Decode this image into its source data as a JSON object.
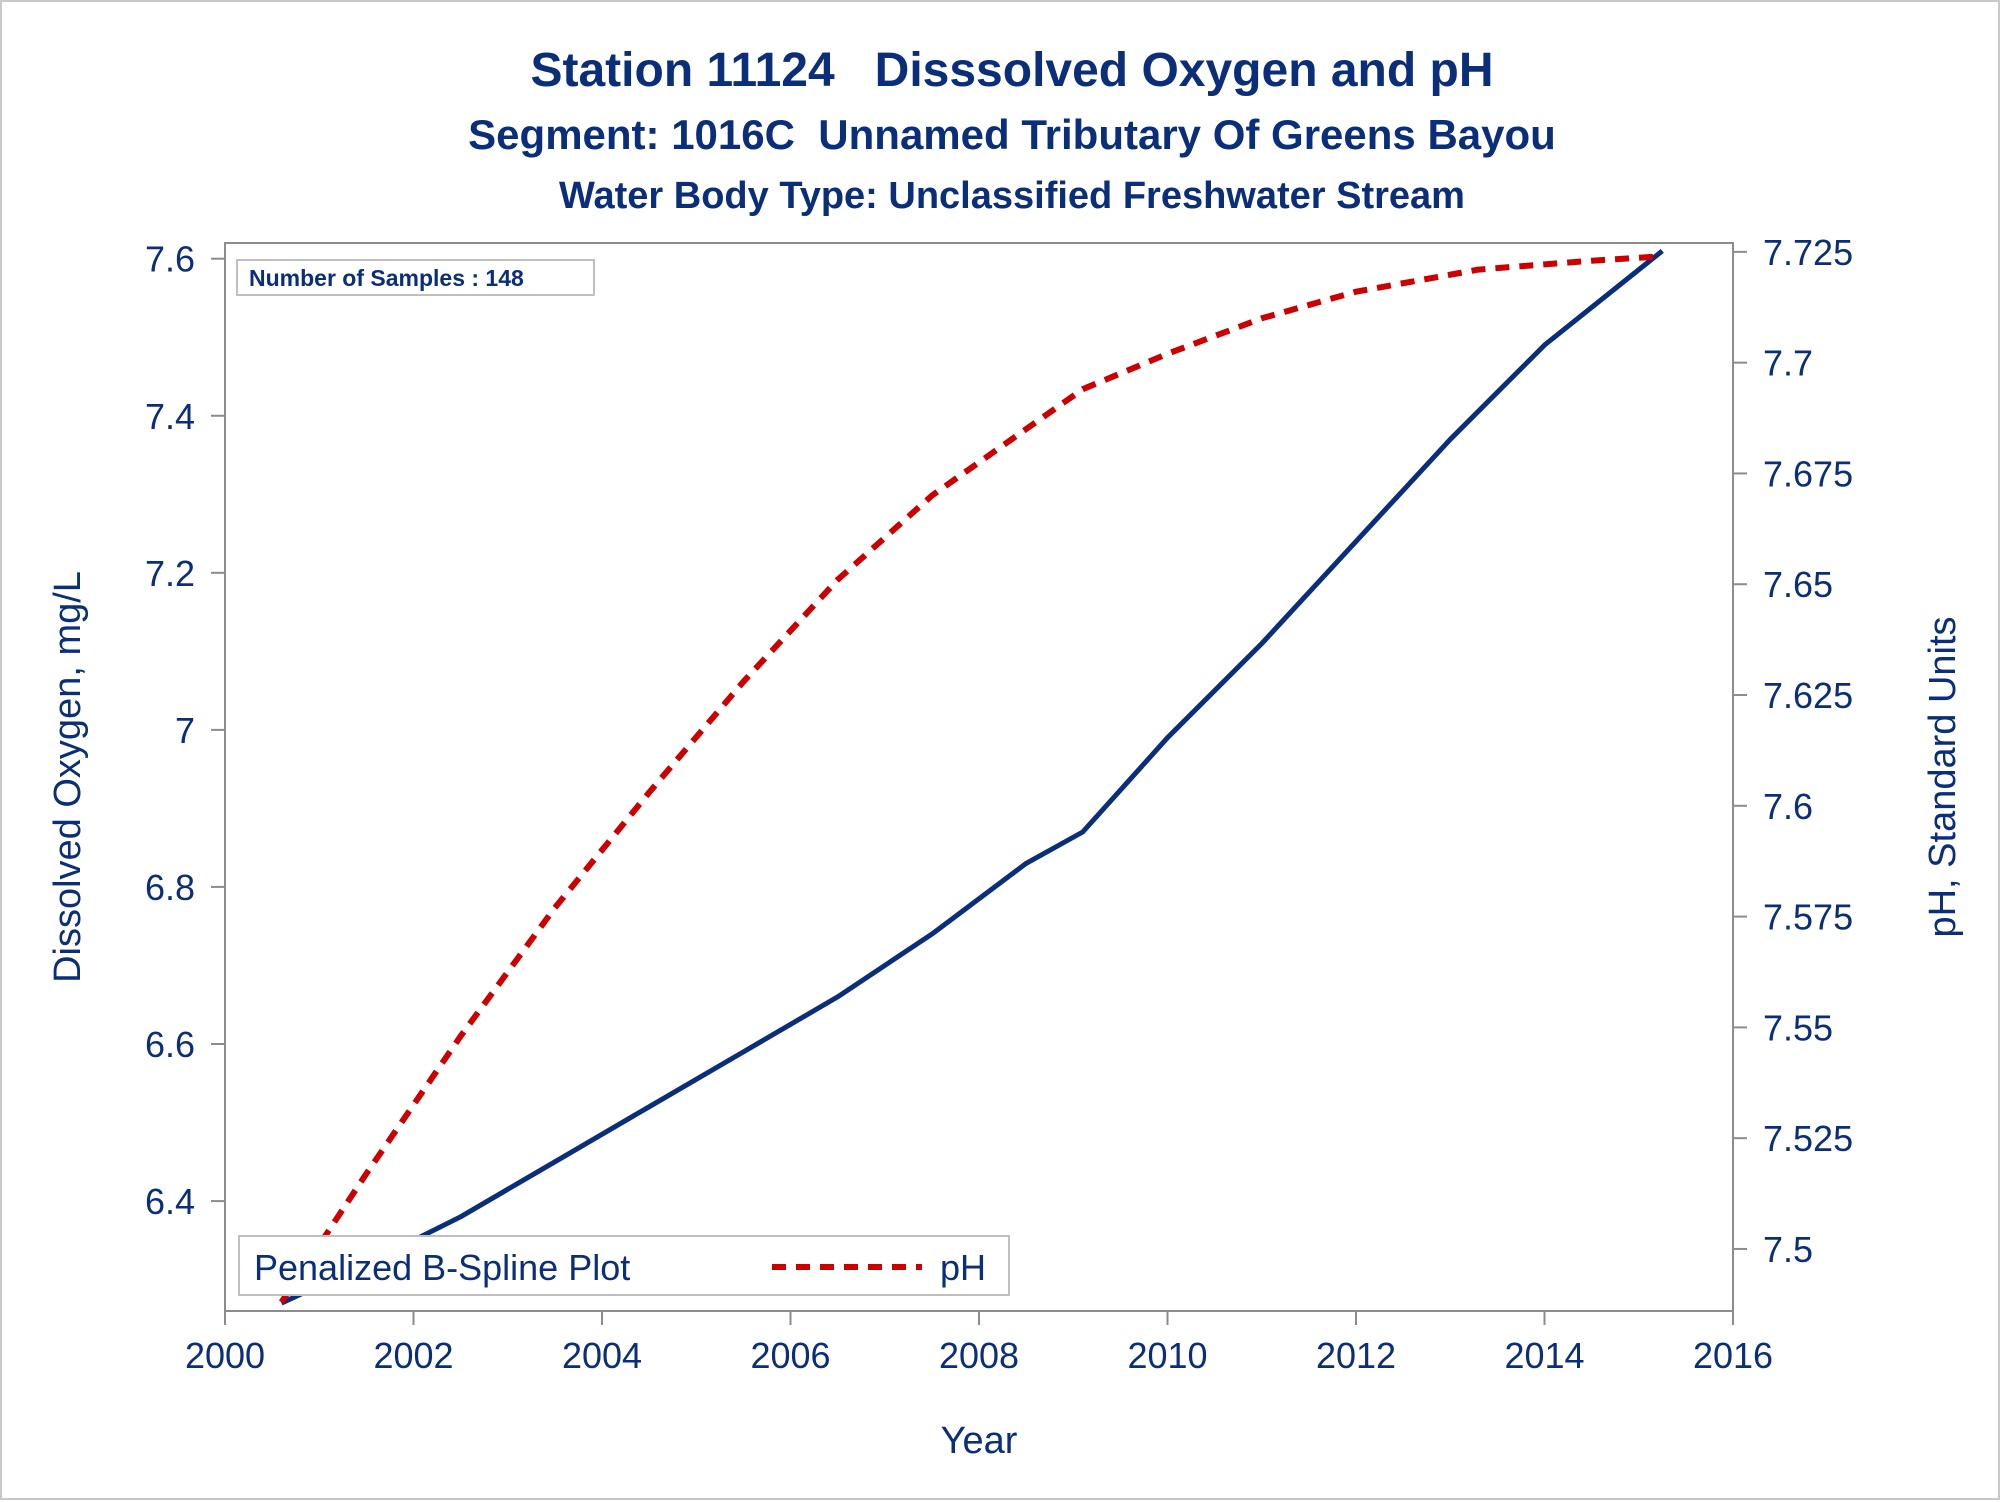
{
  "chart_data": {
    "type": "line",
    "title": "Station 11124   Disssolved Oxygen and pH",
    "subtitle": "Segment: 1016C  Unnamed Tributary Of Greens Bayou",
    "subtitle2": "Water Body Type: Unclassified Freshwater Stream",
    "xlabel": "Year",
    "ylabel": "Dissolved Oxygen, mg/L",
    "y2label": "pH, Standard Units",
    "xlim": [
      2000,
      2016
    ],
    "ylim": [
      6.26,
      7.62
    ],
    "y2lim": [
      7.486,
      7.727
    ],
    "x_ticks": [
      "2000",
      "2002",
      "2004",
      "2006",
      "2008",
      "2010",
      "2012",
      "2014",
      "2016"
    ],
    "y_ticks": [
      "6.4",
      "6.6",
      "6.8",
      "7",
      "7.2",
      "7.4",
      "7.6"
    ],
    "y2_ticks": [
      "7.5",
      "7.525",
      "7.55",
      "7.575",
      "7.6",
      "7.625",
      "7.65",
      "7.675",
      "7.7",
      "7.725"
    ],
    "inset_label": "Number of Samples : 148",
    "legend_title": "Penalized B-Spline Plot",
    "legend_placement": "bottom-left",
    "grid": false,
    "colors": {
      "do": "#0b2e7a",
      "ph": "#cc0000",
      "text": "#0b2e7a",
      "axis": "#8c8c8c"
    },
    "series": [
      {
        "axis": "left",
        "style": "solid",
        "x": [
          2000.6,
          2001.5,
          2002.5,
          2003.5,
          2004.5,
          2005.5,
          2006.5,
          2007.5,
          2008.5,
          2009.1,
          2010,
          2011,
          2012,
          2013,
          2014,
          2015.25
        ],
        "y": [
          6.27,
          6.32,
          6.38,
          6.45,
          6.52,
          6.59,
          6.66,
          6.74,
          6.83,
          6.87,
          6.99,
          7.11,
          7.24,
          7.37,
          7.49,
          7.61
        ]
      },
      {
        "name": "pH",
        "axis": "right",
        "style": "dashed",
        "x": [
          2000.6,
          2001.5,
          2002.5,
          2003.5,
          2004.5,
          2005.5,
          2006.5,
          2007.5,
          2008.5,
          2009.1,
          2010,
          2011,
          2012,
          2013.3,
          2014.5,
          2015.25
        ],
        "y": [
          7.488,
          7.517,
          7.548,
          7.577,
          7.603,
          7.628,
          7.651,
          7.67,
          7.685,
          7.694,
          7.702,
          7.71,
          7.716,
          7.721,
          7.723,
          7.724
        ]
      }
    ]
  }
}
